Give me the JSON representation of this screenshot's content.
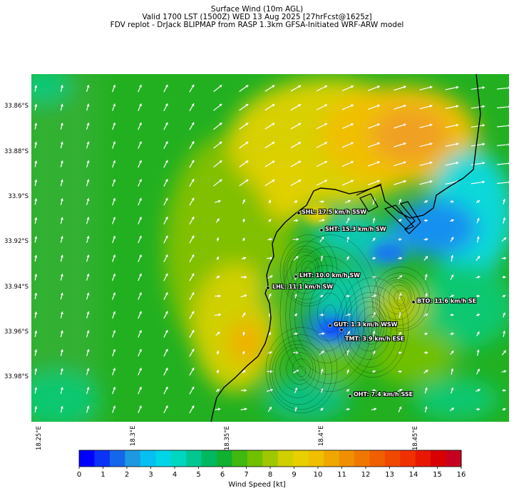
{
  "header": {
    "line1": "Surface Wind (10m AGL)",
    "line2": "Valid 1700 LST (1500Z) WED 13 Aug 2025 [27hrFcst@1625z]",
    "line3": "FDV replot - DrJack BLIPMAP from RASP 1.3km GFSA-Initiated WRF-ARW model"
  },
  "lat_labels": [
    "33.86°S",
    "33.88°S",
    "33.9°S",
    "33.92°S",
    "33.94°S",
    "33.96°S",
    "33.98°S"
  ],
  "lon_labels": [
    "18.25°E",
    "18.3°E",
    "18.35°E",
    "18.4°E",
    "18.45°E"
  ],
  "stations": [
    {
      "code": "SHL",
      "label": "SHL: 17.5 km/h SSW"
    },
    {
      "code": "SHT",
      "label": "SHT: 15.3 km/h SW"
    },
    {
      "code": "LHT",
      "label": "LHT: 10.0 km/h SW"
    },
    {
      "code": "LHL",
      "label": "LHL: 11.1 km/h SW"
    },
    {
      "code": "BTO",
      "label": "BTO: 11.6 km/h SE"
    },
    {
      "code": "GUT",
      "label": "GUT: 1.3 km/h WSW"
    },
    {
      "code": "TMT",
      "label": "TMT: 3.9 km/h ESE"
    },
    {
      "code": "OHT",
      "label": "OHT: 7.4 km/h SSE"
    }
  ],
  "colorbar": {
    "ticks": [
      "0",
      "1",
      "2",
      "3",
      "4",
      "5",
      "6",
      "7",
      "8",
      "9",
      "10",
      "11",
      "12",
      "13",
      "14",
      "15",
      "16"
    ],
    "label": "Wind Speed [kt]",
    "colors": [
      "#0000ff",
      "#0a33f5",
      "#1466eb",
      "#1e99e1",
      "#05c0f0",
      "#00d5e8",
      "#00d7c0",
      "#00c890",
      "#00b860",
      "#10b030",
      "#40b810",
      "#70c000",
      "#a0c800",
      "#d0d000",
      "#e8d000",
      "#f0c000",
      "#f0a800",
      "#f09000",
      "#f07800",
      "#f06000",
      "#f04800",
      "#f03000",
      "#e81800",
      "#d80000",
      "#c80020"
    ]
  },
  "map_colors": {
    "land_green": "#22b020",
    "mid_yellow": "#e0d000",
    "orange": "#f0a020",
    "sea_cyan": "#10d8d8",
    "blue": "#1890f0"
  }
}
